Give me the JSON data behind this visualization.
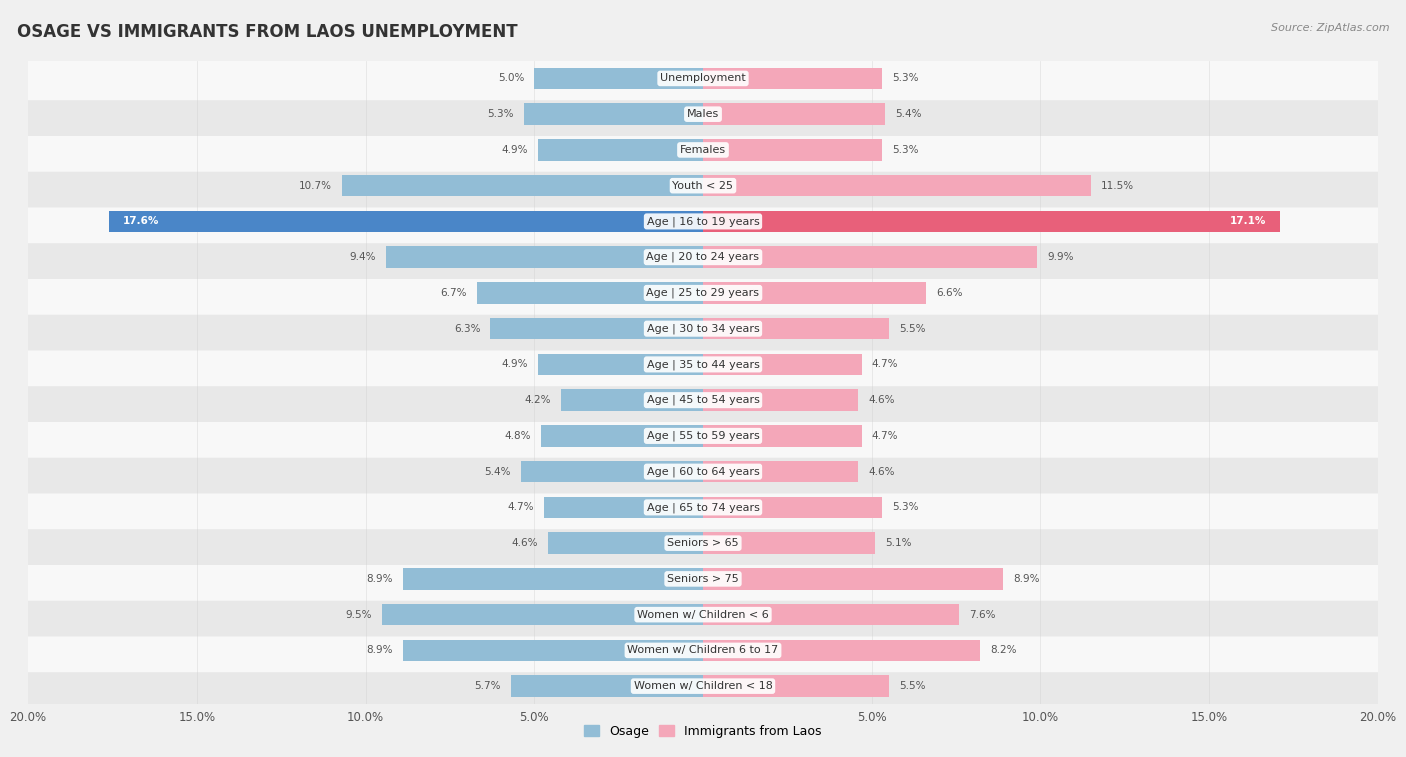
{
  "title": "OSAGE VS IMMIGRANTS FROM LAOS UNEMPLOYMENT",
  "source": "Source: ZipAtlas.com",
  "categories": [
    "Unemployment",
    "Males",
    "Females",
    "Youth < 25",
    "Age | 16 to 19 years",
    "Age | 20 to 24 years",
    "Age | 25 to 29 years",
    "Age | 30 to 34 years",
    "Age | 35 to 44 years",
    "Age | 45 to 54 years",
    "Age | 55 to 59 years",
    "Age | 60 to 64 years",
    "Age | 65 to 74 years",
    "Seniors > 65",
    "Seniors > 75",
    "Women w/ Children < 6",
    "Women w/ Children 6 to 17",
    "Women w/ Children < 18"
  ],
  "osage_values": [
    5.0,
    5.3,
    4.9,
    10.7,
    17.6,
    9.4,
    6.7,
    6.3,
    4.9,
    4.2,
    4.8,
    5.4,
    4.7,
    4.6,
    8.9,
    9.5,
    8.9,
    5.7
  ],
  "laos_values": [
    5.3,
    5.4,
    5.3,
    11.5,
    17.1,
    9.9,
    6.6,
    5.5,
    4.7,
    4.6,
    4.7,
    4.6,
    5.3,
    5.1,
    8.9,
    7.6,
    8.2,
    5.5
  ],
  "osage_color": "#92BDD6",
  "laos_color": "#F4A7B9",
  "osage_highlight_color": "#4A86C8",
  "laos_highlight_color": "#E8607A",
  "axis_max": 20.0,
  "background_color": "#f0f0f0",
  "row_color_light": "#f8f8f8",
  "row_color_dark": "#e8e8e8",
  "bar_height": 0.6,
  "legend_osage": "Osage",
  "legend_laos": "Immigrants from Laos"
}
